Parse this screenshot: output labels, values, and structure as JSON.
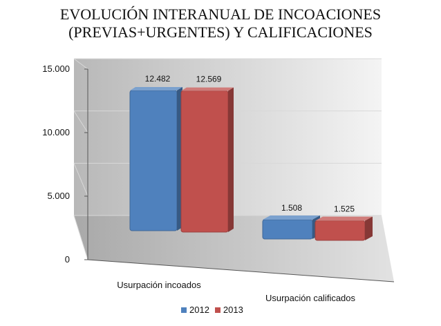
{
  "chart_data": {
    "type": "bar",
    "title_lines": [
      "EVOLUCIÓN INTERANUAL DE INCOACIONES",
      "(PREVIAS+URGENTES) Y CALIFICACIONES"
    ],
    "categories": [
      "Usurpación incoados",
      "Usurpación calificados"
    ],
    "series": [
      {
        "name": "2012",
        "values": [
          12482,
          1508
        ],
        "labels": [
          "12.482",
          "1.508"
        ],
        "color": "#4F81BD"
      },
      {
        "name": "2013",
        "values": [
          12569,
          1525
        ],
        "labels": [
          "12.569",
          "1.525"
        ],
        "color": "#C0504D"
      }
    ],
    "ylim": [
      0,
      15000
    ],
    "yticks": [
      0,
      5000,
      10000,
      15000
    ],
    "ytick_labels": [
      "0",
      "5.000",
      "10.000",
      "15.000"
    ],
    "grid": true,
    "legend_position": "bottom",
    "style": "3d-column"
  }
}
